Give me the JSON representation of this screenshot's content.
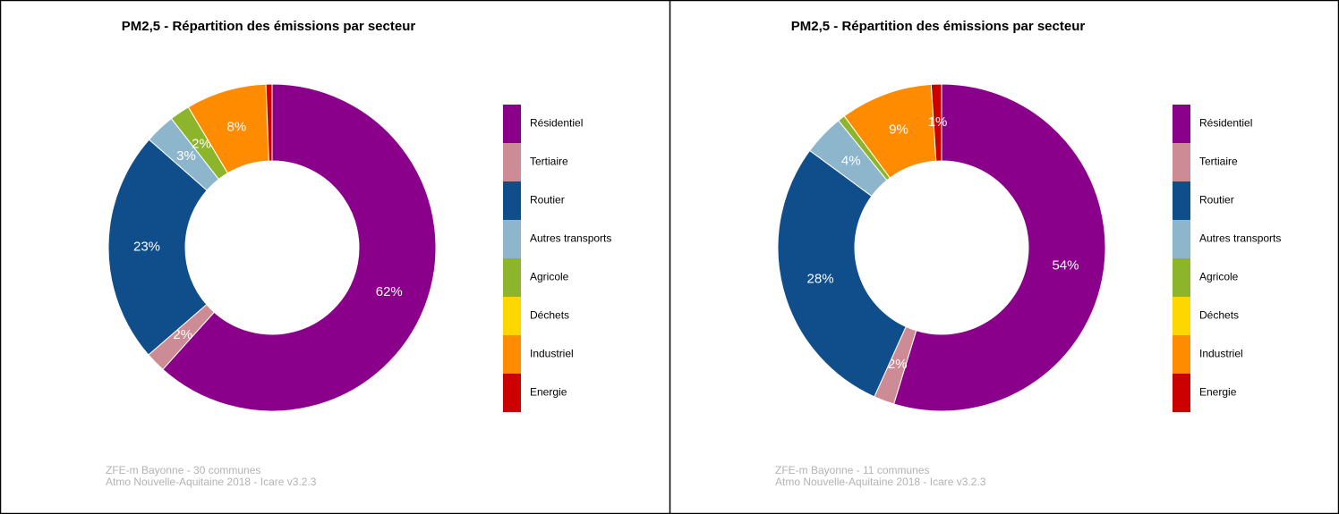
{
  "chart_data": [
    {
      "type": "donut",
      "title": "PM2,5 - Répartition des émissions par secteur",
      "categories": [
        "Résidentiel",
        "Tertiaire",
        "Routier",
        "Autres transports",
        "Agricole",
        "Déchets",
        "Industriel",
        "Energie"
      ],
      "values": [
        62,
        2,
        23,
        3,
        2,
        0,
        8,
        0.6
      ],
      "value_labels": [
        "62%",
        "2%",
        "23%",
        "3%",
        "2%",
        null,
        "8%",
        null
      ],
      "colors": [
        "#8b008b",
        "#cd8c95",
        "#104e8b",
        "#8db6cd",
        "#8db52c",
        "#ffd700",
        "#ff8c00",
        "#cd0000"
      ],
      "notes": [
        "ZFE-m Bayonne - 30 communes",
        "Atmo Nouvelle-Aquitaine 2018 - Icare v3.2.3"
      ]
    },
    {
      "type": "donut",
      "title": "PM2,5 - Répartition des émissions par secteur",
      "categories": [
        "Résidentiel",
        "Tertiaire",
        "Routier",
        "Autres transports",
        "Agricole",
        "Déchets",
        "Industriel",
        "Energie"
      ],
      "values": [
        54,
        2,
        28,
        4,
        0.7,
        0,
        9,
        1
      ],
      "value_labels": [
        "54%",
        "2%",
        "28%",
        "4%",
        null,
        null,
        "9%",
        "1%"
      ],
      "colors": [
        "#8b008b",
        "#cd8c95",
        "#104e8b",
        "#8db6cd",
        "#8db52c",
        "#ffd700",
        "#ff8c00",
        "#cd0000"
      ],
      "notes": [
        "ZFE-m Bayonne - 11 communes",
        "Atmo Nouvelle-Aquitaine 2018 - Icare v3.2.3"
      ]
    }
  ]
}
